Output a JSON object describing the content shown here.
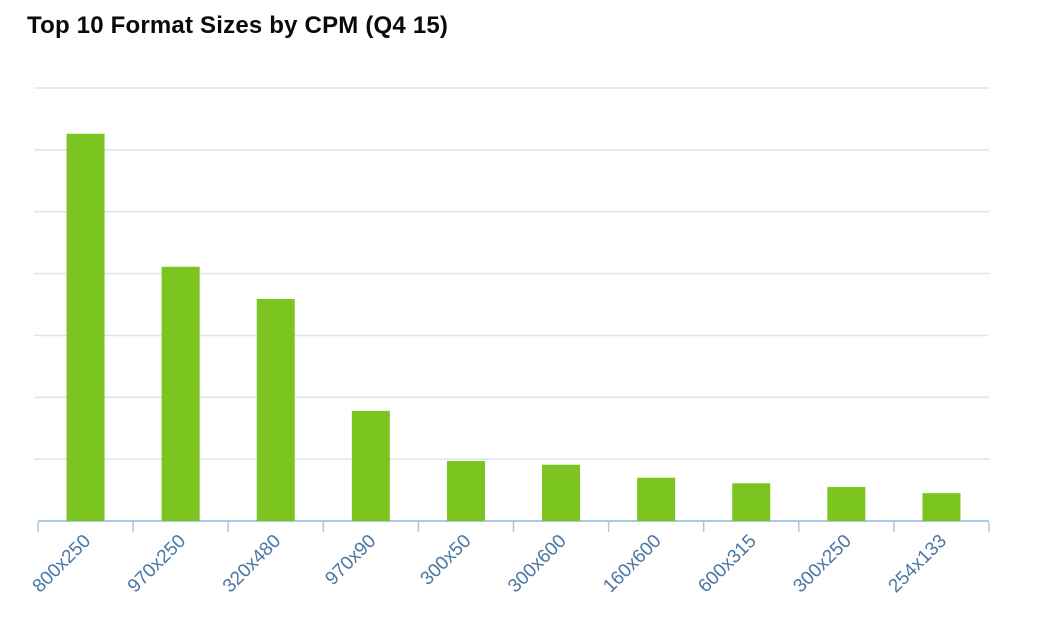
{
  "page": {
    "background_color": "#ffffff"
  },
  "chart_data": {
    "type": "bar",
    "title": "Top 10 Format Sizes by CPM (Q4 15)",
    "categories": [
      "800x250",
      "970x250",
      "320x480",
      "970x90",
      "300x50",
      "300x600",
      "160x600",
      "600x315",
      "300x250",
      "254x133"
    ],
    "values": [
      6.26,
      4.11,
      3.59,
      1.78,
      0.97,
      0.91,
      0.7,
      0.61,
      0.55,
      0.45
    ],
    "xlabel": "",
    "ylabel": "",
    "ylim": [
      0,
      7
    ],
    "gridline_interval": 1,
    "grid": true,
    "y_tick_labels_visible": false,
    "legend_position": "none",
    "colors": {
      "bar": "#7cc41f",
      "gridline": "#d7e7f4",
      "axis": "#a9c9e5",
      "x_label": "#4a77a4",
      "title": "#0a0a0a"
    }
  }
}
